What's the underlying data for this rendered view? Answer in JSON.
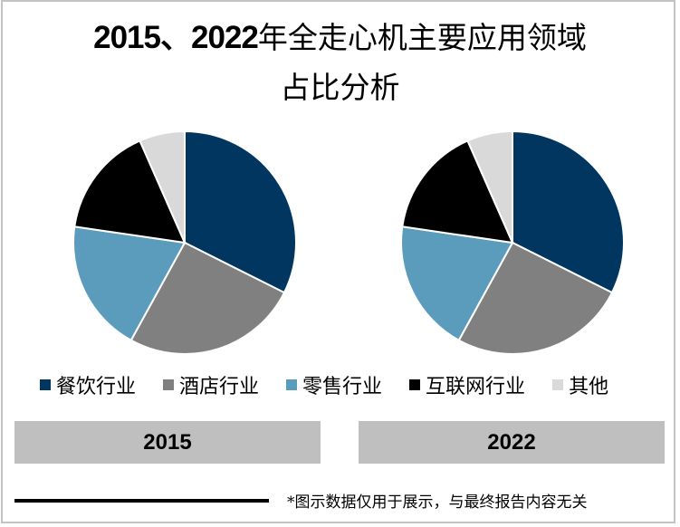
{
  "title": {
    "line1_years": "2015、2022",
    "line1_text": "年全走心机主要应用领域",
    "line2": "占比分析"
  },
  "legend": [
    {
      "label": "餐饮行业",
      "color": "#003660"
    },
    {
      "label": "酒店行业",
      "color": "#808080"
    },
    {
      "label": "零售行业",
      "color": "#5b9bbb"
    },
    {
      "label": "互联网行业",
      "color": "#000000"
    },
    {
      "label": "其他",
      "color": "#d9d9d9"
    }
  ],
  "year_labels": [
    "2015",
    "2022"
  ],
  "footnote": "*图示数据仅用于展示，与最终报告内容无关",
  "chart_data": [
    {
      "type": "pie",
      "title": "2015",
      "categories": [
        "餐饮行业",
        "酒店行业",
        "零售行业",
        "互联网行业",
        "其他"
      ],
      "values": [
        32.4,
        25.6,
        19.3,
        16.1,
        6.6
      ],
      "colors": [
        "#003660",
        "#808080",
        "#5b9bbb",
        "#000000",
        "#d9d9d9"
      ],
      "start_angle": "12 o'clock, clockwise",
      "legend_position": "bottom"
    },
    {
      "type": "pie",
      "title": "2022",
      "categories": [
        "餐饮行业",
        "酒店行业",
        "零售行业",
        "互联网行业",
        "其他"
      ],
      "values": [
        32.4,
        25.6,
        19.3,
        16.1,
        6.6
      ],
      "colors": [
        "#003660",
        "#808080",
        "#5b9bbb",
        "#000000",
        "#d9d9d9"
      ],
      "start_angle": "12 o'clock, clockwise",
      "legend_position": "bottom"
    }
  ]
}
